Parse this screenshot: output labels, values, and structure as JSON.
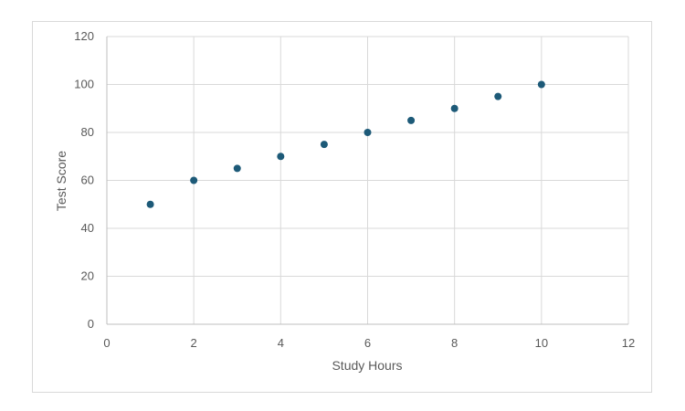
{
  "chart_data": {
    "type": "scatter",
    "title": "",
    "xlabel": "Study Hours",
    "ylabel": "Test Score",
    "xlim": [
      0,
      12
    ],
    "ylim": [
      0,
      120
    ],
    "x_ticks": [
      0,
      2,
      4,
      6,
      8,
      10,
      12
    ],
    "y_ticks": [
      0,
      20,
      40,
      60,
      80,
      100,
      120
    ],
    "grid": true,
    "legend": "none",
    "series": [
      {
        "x": [
          1,
          2,
          3,
          4,
          5,
          6,
          7,
          8,
          9,
          10
        ],
        "y": [
          50,
          60,
          65,
          70,
          75,
          80,
          85,
          90,
          95,
          100
        ]
      }
    ]
  },
  "colors": {
    "marker": "#1d5a78",
    "grid": "#d9d9d9",
    "axis": "#bfbfbf",
    "text": "#595959",
    "frame": "#d9d9d9"
  }
}
